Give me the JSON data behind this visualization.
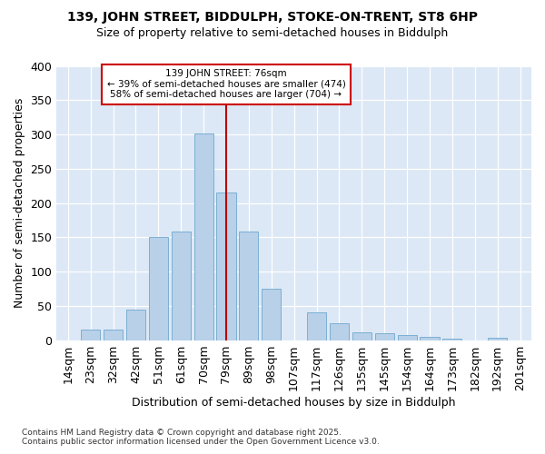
{
  "title1": "139, JOHN STREET, BIDDULPH, STOKE-ON-TRENT, ST8 6HP",
  "title2": "Size of property relative to semi-detached houses in Biddulph",
  "xlabel": "Distribution of semi-detached houses by size in Biddulph",
  "ylabel": "Number of semi-detached properties",
  "categories": [
    "14sqm",
    "23sqm",
    "32sqm",
    "42sqm",
    "51sqm",
    "61sqm",
    "70sqm",
    "79sqm",
    "89sqm",
    "98sqm",
    "107sqm",
    "117sqm",
    "126sqm",
    "135sqm",
    "145sqm",
    "154sqm",
    "164sqm",
    "173sqm",
    "182sqm",
    "192sqm",
    "201sqm"
  ],
  "values": [
    0,
    15,
    15,
    44,
    150,
    158,
    302,
    215,
    158,
    75,
    0,
    40,
    25,
    12,
    10,
    7,
    5,
    2,
    0,
    4,
    0
  ],
  "bar_color": "#b8d0e8",
  "bar_edge_color": "#7aafd4",
  "plot_bg_color": "#dce8f5",
  "fig_bg_color": "#ffffff",
  "grid_color": "#ffffff",
  "vline_index": 7,
  "vline_color": "#bb0000",
  "annotation_title": "139 JOHN STREET: 76sqm",
  "annotation_line1": "← 39% of semi-detached houses are smaller (474)",
  "annotation_line2": "58% of semi-detached houses are larger (704) →",
  "annotation_box_color": "#ffffff",
  "annotation_box_edge": "#cc0000",
  "footer1": "Contains HM Land Registry data © Crown copyright and database right 2025.",
  "footer2": "Contains public sector information licensed under the Open Government Licence v3.0.",
  "ylim": [
    0,
    400
  ],
  "yticks": [
    0,
    50,
    100,
    150,
    200,
    250,
    300,
    350,
    400
  ]
}
